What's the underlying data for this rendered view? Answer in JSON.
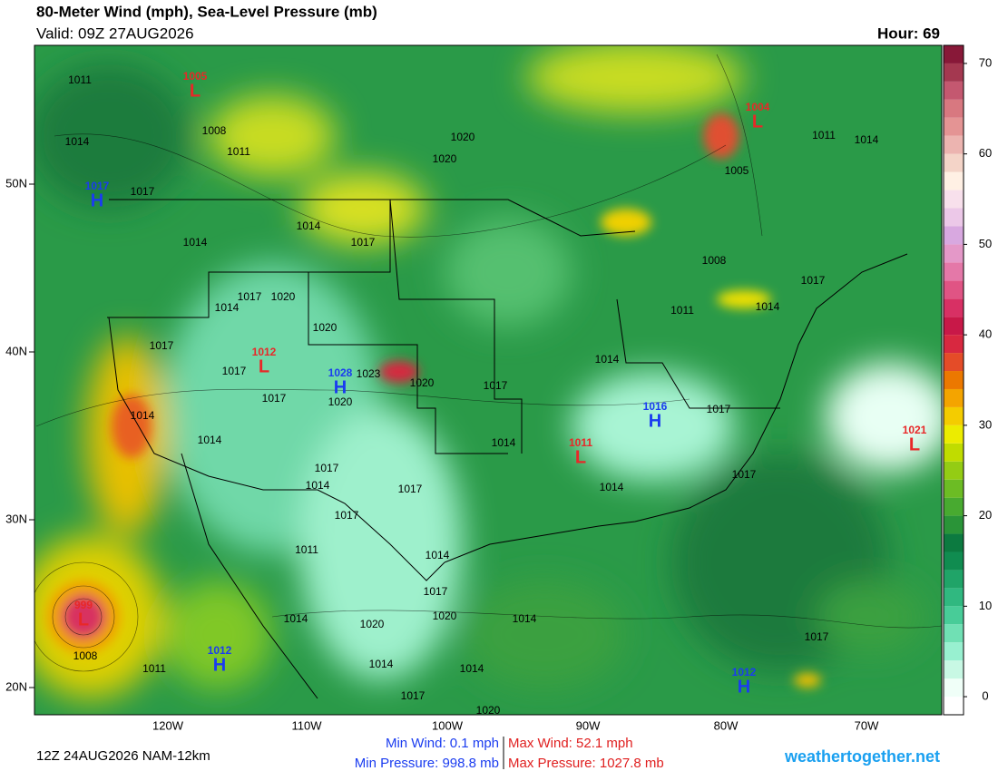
{
  "header": {
    "title": "80-Meter Wind (mph), Sea-Level Pressure (mb)",
    "valid": "Valid: 09Z 27AUG2026",
    "hour": "Hour: 69"
  },
  "map": {
    "lon_labels": [
      "120W",
      "110W",
      "100W",
      "90W",
      "80W",
      "70W"
    ],
    "lat_labels": [
      "50N",
      "40N",
      "30N",
      "20N"
    ],
    "centers": [
      {
        "symbol": "L",
        "pressure": "1005"
      },
      {
        "symbol": "H",
        "pressure": "1017"
      },
      {
        "symbol": "L",
        "pressure": "1004"
      },
      {
        "symbol": "L",
        "pressure": "1012"
      },
      {
        "symbol": "H",
        "pressure": "1028"
      },
      {
        "symbol": "H",
        "pressure": "1016"
      },
      {
        "symbol": "L",
        "pressure": "1011"
      },
      {
        "symbol": "L",
        "pressure": "1021"
      },
      {
        "symbol": "L",
        "pressure": "999"
      },
      {
        "symbol": "H",
        "pressure": "1012"
      },
      {
        "symbol": "H",
        "pressure": "1012"
      }
    ],
    "isobar_labels": [
      "1011",
      "1014",
      "1008",
      "1011",
      "1017",
      "1020",
      "1020",
      "1014",
      "1014",
      "1017",
      "1017",
      "1020",
      "1014",
      "1020",
      "1017",
      "1017",
      "1023",
      "1020",
      "1020",
      "1017",
      "1014",
      "1014",
      "1017",
      "1014",
      "1017",
      "1017",
      "1011",
      "1014",
      "1017",
      "1020",
      "1020",
      "1014",
      "1014",
      "1014",
      "1017",
      "1020",
      "1011",
      "1008",
      "1014",
      "1014",
      "1017",
      "1014",
      "1014",
      "1017",
      "1017",
      "1008",
      "1011",
      "1014",
      "1017",
      "1014",
      "1011",
      "1005",
      "1017"
    ]
  },
  "colorbar": {
    "range": [
      -2,
      72
    ],
    "ticks": [
      0,
      10,
      20,
      30,
      40,
      50,
      60,
      70
    ],
    "colors": [
      "#ffffff",
      "#f0fff8",
      "#c8f8e4",
      "#98f0d0",
      "#70e0b4",
      "#48cc98",
      "#30b880",
      "#20a468",
      "#108c50",
      "#0c7a40",
      "#2a9438",
      "#48aa30",
      "#6cbc24",
      "#94cc14",
      "#c0dc00",
      "#ecec00",
      "#f4cc00",
      "#f4a400",
      "#ec7800",
      "#e44c28",
      "#d82840",
      "#c81848",
      "#d83064",
      "#e05484",
      "#e478a8",
      "#e498c8",
      "#d8a8e0",
      "#ecc8e8",
      "#f8e0ec",
      "#fff0e4",
      "#f4d4c8",
      "#ecb4b0",
      "#e49494",
      "#d87880",
      "#c45870",
      "#a43850",
      "#881838"
    ]
  },
  "footer": {
    "run": "12Z 24AUG2026 NAM-12km",
    "min_wind": "Min Wind:   0.1 mph",
    "max_wind": "Max Wind:  52.1 mph",
    "min_pressure": "Min Pressure: 998.8 mb",
    "max_pressure": "Max Pressure: 1027.8 mb",
    "site": "weathertogether.net"
  }
}
